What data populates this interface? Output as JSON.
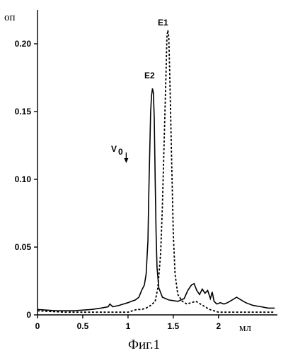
{
  "figure": {
    "caption": "Фиг.1"
  },
  "chart_data": {
    "type": "line",
    "ylabel": "оп",
    "xlabel": "мл",
    "xlim": [
      0,
      2.65
    ],
    "ylim": [
      0,
      0.225
    ],
    "x_ticks": [
      0,
      0.5,
      1,
      1.5,
      2
    ],
    "x_tick_labels": [
      "0",
      "0.5",
      "1",
      "1.5",
      "2"
    ],
    "y_ticks": [
      0,
      0.05,
      0.1,
      0.15,
      0.2
    ],
    "y_tick_labels": [
      "0",
      "0.05",
      "0.10",
      "0.15",
      "0.20"
    ],
    "annotations": {
      "e1": "E1",
      "e2": "E2",
      "v0": "V",
      "v0_sub": "0",
      "v0_x": 0.98
    },
    "series": [
      {
        "name": "E2",
        "style": "solid",
        "points": [
          [
            0,
            0.004
          ],
          [
            0.2,
            0.003
          ],
          [
            0.4,
            0.003
          ],
          [
            0.6,
            0.004
          ],
          [
            0.7,
            0.005
          ],
          [
            0.78,
            0.006
          ],
          [
            0.8,
            0.008
          ],
          [
            0.83,
            0.006
          ],
          [
            0.9,
            0.007
          ],
          [
            0.95,
            0.008
          ],
          [
            1.0,
            0.009
          ],
          [
            1.04,
            0.01
          ],
          [
            1.08,
            0.011
          ],
          [
            1.12,
            0.013
          ],
          [
            1.15,
            0.018
          ],
          [
            1.18,
            0.022
          ],
          [
            1.2,
            0.03
          ],
          [
            1.22,
            0.055
          ],
          [
            1.23,
            0.09
          ],
          [
            1.24,
            0.12
          ],
          [
            1.25,
            0.15
          ],
          [
            1.26,
            0.162
          ],
          [
            1.27,
            0.167
          ],
          [
            1.28,
            0.164
          ],
          [
            1.29,
            0.145
          ],
          [
            1.3,
            0.1
          ],
          [
            1.31,
            0.06
          ],
          [
            1.32,
            0.035
          ],
          [
            1.34,
            0.02
          ],
          [
            1.38,
            0.013
          ],
          [
            1.45,
            0.011
          ],
          [
            1.55,
            0.01
          ],
          [
            1.62,
            0.012
          ],
          [
            1.66,
            0.018
          ],
          [
            1.7,
            0.022
          ],
          [
            1.73,
            0.023
          ],
          [
            1.76,
            0.018
          ],
          [
            1.79,
            0.015
          ],
          [
            1.82,
            0.019
          ],
          [
            1.85,
            0.016
          ],
          [
            1.88,
            0.018
          ],
          [
            1.91,
            0.012
          ],
          [
            1.93,
            0.017
          ],
          [
            1.95,
            0.01
          ],
          [
            1.98,
            0.008
          ],
          [
            2.02,
            0.009
          ],
          [
            2.06,
            0.008
          ],
          [
            2.1,
            0.009
          ],
          [
            2.15,
            0.011
          ],
          [
            2.2,
            0.013
          ],
          [
            2.25,
            0.011
          ],
          [
            2.3,
            0.009
          ],
          [
            2.38,
            0.007
          ],
          [
            2.47,
            0.006
          ],
          [
            2.55,
            0.005
          ],
          [
            2.62,
            0.005
          ]
        ]
      },
      {
        "name": "E1",
        "style": "dashed",
        "points": [
          [
            0,
            0.003
          ],
          [
            0.3,
            0.002
          ],
          [
            0.6,
            0.002
          ],
          [
            0.9,
            0.002
          ],
          [
            1.0,
            0.002
          ],
          [
            1.05,
            0.003
          ],
          [
            1.1,
            0.004
          ],
          [
            1.15,
            0.004
          ],
          [
            1.2,
            0.005
          ],
          [
            1.25,
            0.007
          ],
          [
            1.3,
            0.01
          ],
          [
            1.33,
            0.02
          ],
          [
            1.36,
            0.045
          ],
          [
            1.38,
            0.08
          ],
          [
            1.4,
            0.13
          ],
          [
            1.42,
            0.18
          ],
          [
            1.43,
            0.205
          ],
          [
            1.44,
            0.21
          ],
          [
            1.45,
            0.205
          ],
          [
            1.46,
            0.18
          ],
          [
            1.48,
            0.12
          ],
          [
            1.5,
            0.06
          ],
          [
            1.52,
            0.03
          ],
          [
            1.55,
            0.015
          ],
          [
            1.6,
            0.01
          ],
          [
            1.65,
            0.008
          ],
          [
            1.7,
            0.009
          ],
          [
            1.75,
            0.01
          ],
          [
            1.8,
            0.008
          ],
          [
            1.85,
            0.006
          ],
          [
            1.9,
            0.004
          ],
          [
            1.95,
            0.003
          ],
          [
            2.0,
            0.002
          ],
          [
            2.2,
            0.002
          ],
          [
            2.4,
            0.002
          ],
          [
            2.62,
            0.002
          ]
        ]
      }
    ]
  }
}
